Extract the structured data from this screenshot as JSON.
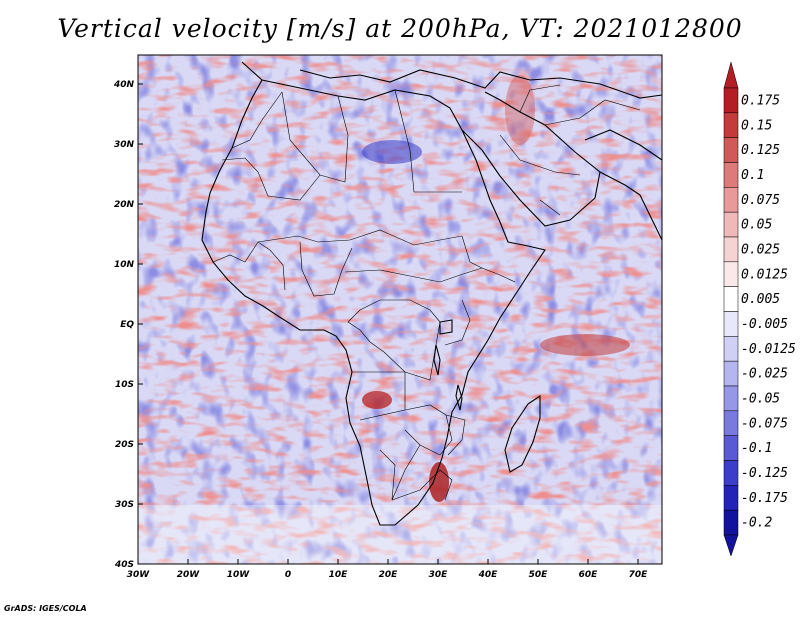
{
  "title": "Vertical velocity [m/s] at 200hPa, VT: 2021012800",
  "map": {
    "variable": "Vertical velocity",
    "units": "m/s",
    "level": "200hPa",
    "valid_time": "2021012800",
    "region": "Africa",
    "lon_range": [
      -30,
      75
    ],
    "lat_range": [
      -40,
      45
    ],
    "lat_labels": [
      "40N",
      "30N",
      "20N",
      "10N",
      "EQ",
      "10S",
      "20S",
      "30S",
      "40S"
    ],
    "lon_labels": [
      "30W",
      "20W",
      "10W",
      "0",
      "10E",
      "20E",
      "30E",
      "40E",
      "50E",
      "60E",
      "70E"
    ]
  },
  "colorbar": {
    "labels": [
      "0.175",
      "0.15",
      "0.125",
      "0.1",
      "0.075",
      "0.05",
      "0.025",
      "0.0125",
      "0.005",
      "-0.005",
      "-0.0125",
      "-0.025",
      "-0.05",
      "-0.075",
      "-0.1",
      "-0.125",
      "-0.175",
      "-0.2"
    ],
    "colors": [
      "#b51d24",
      "#c43b3b",
      "#d25959",
      "#de7a7a",
      "#e89a9a",
      "#f0b9b9",
      "#f6d3d3",
      "#fbe8e8",
      "#ffffff",
      "#e8e8fb",
      "#d0d0f5",
      "#b5b5ef",
      "#9797e7",
      "#7979df",
      "#5a5ad6",
      "#3d3dcb",
      "#2323b8",
      "#12129e"
    ]
  },
  "credit": "GrADS: IGES/COLA"
}
